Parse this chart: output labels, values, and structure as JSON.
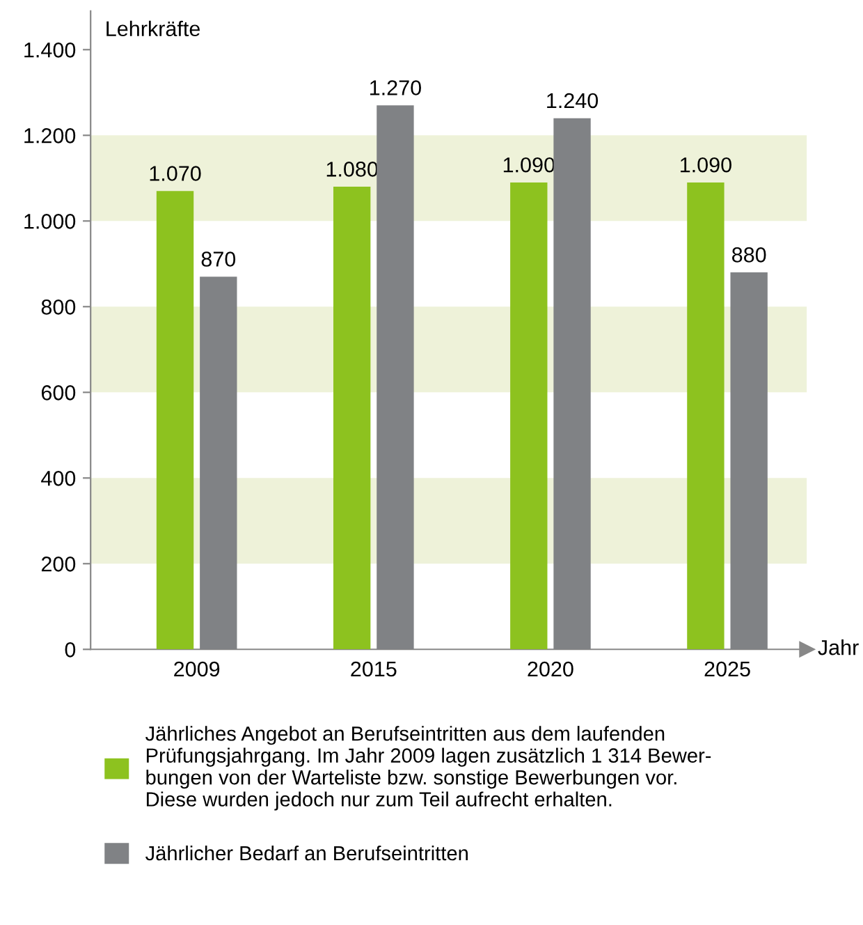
{
  "chart_data": {
    "type": "bar",
    "ylabel": "Lehrkräfte",
    "xlabel": "Jahr",
    "categories": [
      "2009",
      "2015",
      "2020",
      "2025"
    ],
    "series": [
      {
        "name": "Jährliches Angebot an Berufseintritten aus dem laufenden\nPrüfungsjahrgang. Im Jahr 2009 lagen zusätzlich 1 314 Bewer-\nbungen von der Warteliste bzw. sonstige Bewerbungen vor.\nDiese wurden jedoch nur zum Teil aufrecht erhalten.",
        "color": "#8dc21f",
        "values": [
          1070,
          1080,
          1090,
          1090
        ],
        "value_labels": [
          "1.070",
          "1.080",
          "1.090",
          "1.090"
        ]
      },
      {
        "name": "Jährlicher Bedarf an Berufseintritten",
        "color": "#808285",
        "values": [
          870,
          1270,
          1240,
          880
        ],
        "value_labels": [
          "870",
          "1.270",
          "1.240",
          "880"
        ]
      }
    ],
    "ylim": [
      0,
      1490
    ],
    "yticks": [
      0,
      200,
      400,
      600,
      800,
      {
        "value": 1000,
        "label": "1.000"
      },
      {
        "value": 1200,
        "label": "1.200"
      },
      {
        "value": 1400,
        "label": "1.400"
      }
    ],
    "bands": [
      {
        "axis": "y",
        "from": 200,
        "to": 400,
        "color": "#eef2d9"
      },
      {
        "axis": "y",
        "from": 600,
        "to": 800,
        "color": "#eef2d9"
      },
      {
        "axis": "y",
        "from": 1000,
        "to": 1200,
        "color": "#eef2d9"
      }
    ],
    "grid": false,
    "legend": "bottom"
  }
}
